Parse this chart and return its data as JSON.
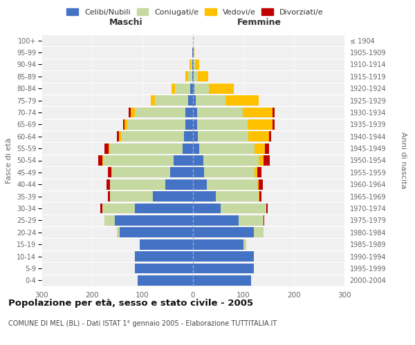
{
  "age_groups": [
    "0-4",
    "5-9",
    "10-14",
    "15-19",
    "20-24",
    "25-29",
    "30-34",
    "35-39",
    "40-44",
    "45-49",
    "50-54",
    "55-59",
    "60-64",
    "65-69",
    "70-74",
    "75-79",
    "80-84",
    "85-89",
    "90-94",
    "95-99",
    "100+"
  ],
  "birth_years": [
    "2000-2004",
    "1995-1999",
    "1990-1994",
    "1985-1989",
    "1980-1984",
    "1975-1979",
    "1970-1974",
    "1965-1969",
    "1960-1964",
    "1955-1959",
    "1950-1954",
    "1945-1949",
    "1940-1944",
    "1935-1939",
    "1930-1934",
    "1925-1929",
    "1920-1924",
    "1915-1919",
    "1910-1914",
    "1905-1909",
    "≤ 1904"
  ],
  "colors": {
    "celibi": "#4472c4",
    "coniugati": "#c5d9a0",
    "vedovi": "#ffc000",
    "divorziati": "#c00000"
  },
  "maschi": {
    "celibi": [
      110,
      115,
      115,
      105,
      145,
      155,
      115,
      80,
      55,
      45,
      38,
      20,
      18,
      15,
      15,
      10,
      5,
      2,
      1,
      1,
      0
    ],
    "coniugati": [
      0,
      0,
      0,
      1,
      5,
      20,
      65,
      85,
      110,
      115,
      140,
      145,
      125,
      115,
      100,
      65,
      30,
      8,
      3,
      1,
      0
    ],
    "vedovi": [
      0,
      0,
      0,
      0,
      0,
      0,
      0,
      0,
      0,
      1,
      1,
      2,
      3,
      5,
      8,
      8,
      8,
      5,
      3,
      0,
      0
    ],
    "divorziati": [
      0,
      0,
      0,
      0,
      0,
      0,
      3,
      4,
      6,
      8,
      8,
      8,
      5,
      4,
      5,
      0,
      0,
      0,
      0,
      0,
      0
    ]
  },
  "femmine": {
    "nubili": [
      115,
      120,
      120,
      100,
      120,
      90,
      55,
      45,
      28,
      22,
      20,
      12,
      10,
      8,
      8,
      5,
      3,
      2,
      1,
      1,
      0
    ],
    "coniugate": [
      0,
      0,
      1,
      5,
      20,
      50,
      90,
      85,
      100,
      100,
      110,
      110,
      100,
      100,
      90,
      60,
      28,
      8,
      3,
      0,
      0
    ],
    "vedove": [
      0,
      0,
      0,
      0,
      0,
      0,
      0,
      1,
      2,
      5,
      10,
      20,
      40,
      50,
      60,
      65,
      50,
      20,
      8,
      2,
      0
    ],
    "divorziate": [
      0,
      0,
      0,
      0,
      0,
      1,
      3,
      5,
      8,
      8,
      12,
      8,
      5,
      3,
      4,
      0,
      0,
      0,
      0,
      0,
      0
    ]
  },
  "xlim": 300,
  "title": "Popolazione per età, sesso e stato civile - 2005",
  "subtitle": "COMUNE DI MEL (BL) - Dati ISTAT 1° gennaio 2005 - Elaborazione TUTTITALIA.IT",
  "ylabel_left": "Fasce di età",
  "ylabel_right": "Anni di nascita",
  "header_maschi": "Maschi",
  "header_femmine": "Femmine",
  "legend_labels": [
    "Celibi/Nubili",
    "Coniugati/e",
    "Vedovi/e",
    "Divorziati/e"
  ],
  "bg_color": "#ffffff",
  "plot_bg": "#f0f0f0",
  "grid_color": "#ffffff",
  "tick_color": "#666666"
}
